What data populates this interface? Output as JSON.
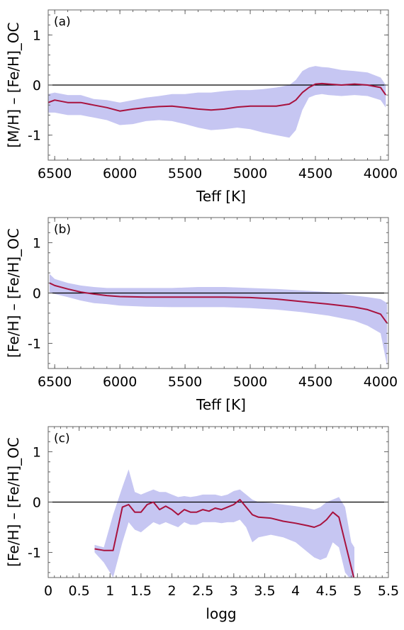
{
  "colors": {
    "band": "#c6c6f2",
    "median": "#a8123e",
    "frame": "#666666",
    "zero_line": "#000000"
  },
  "chart_data": [
    {
      "type": "area",
      "panel_label": "(a)",
      "xlabel": "Teff [K]",
      "ylabel": "[M/H] – [Fe/H]_OC",
      "xlim": [
        6550,
        3940
      ],
      "ylim": [
        -1.5,
        1.5
      ],
      "xticks": [
        6500,
        6000,
        5500,
        5000,
        4500,
        4000
      ],
      "yticks": [
        1,
        0,
        -1
      ],
      "reference_line_y": 0,
      "series": [
        {
          "role": "median",
          "x": [
            6550,
            6500,
            6400,
            6300,
            6200,
            6100,
            6000,
            5900,
            5800,
            5700,
            5600,
            5500,
            5400,
            5300,
            5200,
            5100,
            5000,
            4900,
            4800,
            4700,
            4650,
            4600,
            4550,
            4500,
            4450,
            4400,
            4300,
            4200,
            4100,
            4000,
            3960
          ],
          "y": [
            -0.35,
            -0.3,
            -0.35,
            -0.35,
            -0.4,
            -0.45,
            -0.52,
            -0.48,
            -0.45,
            -0.43,
            -0.42,
            -0.45,
            -0.48,
            -0.5,
            -0.48,
            -0.44,
            -0.42,
            -0.42,
            -0.42,
            -0.38,
            -0.3,
            -0.15,
            -0.05,
            0.02,
            0.03,
            0.02,
            0.0,
            0.02,
            0.0,
            -0.05,
            -0.2
          ]
        },
        {
          "role": "band_upper",
          "x": [
            6550,
            6500,
            6400,
            6300,
            6200,
            6100,
            6000,
            5900,
            5800,
            5700,
            5600,
            5500,
            5400,
            5300,
            5200,
            5100,
            5000,
            4900,
            4800,
            4700,
            4650,
            4600,
            4550,
            4500,
            4450,
            4400,
            4300,
            4200,
            4100,
            4000,
            3960
          ],
          "y": [
            -0.18,
            -0.15,
            -0.2,
            -0.2,
            -0.28,
            -0.3,
            -0.35,
            -0.3,
            -0.25,
            -0.22,
            -0.18,
            -0.18,
            -0.15,
            -0.15,
            -0.12,
            -0.1,
            -0.1,
            -0.08,
            -0.05,
            0.0,
            0.1,
            0.28,
            0.35,
            0.38,
            0.36,
            0.35,
            0.3,
            0.28,
            0.25,
            0.15,
            0.0
          ]
        },
        {
          "role": "band_lower",
          "x": [
            6550,
            6500,
            6400,
            6300,
            6200,
            6100,
            6000,
            5900,
            5800,
            5700,
            5600,
            5500,
            5400,
            5300,
            5200,
            5100,
            5000,
            4900,
            4800,
            4700,
            4650,
            4600,
            4550,
            4500,
            4450,
            4400,
            4300,
            4200,
            4100,
            4000,
            3960
          ],
          "y": [
            -0.55,
            -0.55,
            -0.6,
            -0.6,
            -0.65,
            -0.7,
            -0.8,
            -0.78,
            -0.72,
            -0.7,
            -0.72,
            -0.78,
            -0.85,
            -0.9,
            -0.88,
            -0.85,
            -0.88,
            -0.95,
            -1.0,
            -1.05,
            -0.9,
            -0.5,
            -0.25,
            -0.2,
            -0.18,
            -0.2,
            -0.22,
            -0.2,
            -0.22,
            -0.3,
            -0.45
          ]
        }
      ]
    },
    {
      "type": "area",
      "panel_label": "(b)",
      "xlabel": "Teff [K]",
      "ylabel": "[Fe/H] – [Fe/H]_OC",
      "xlim": [
        6550,
        3940
      ],
      "ylim": [
        -1.5,
        1.5
      ],
      "xticks": [
        6500,
        6000,
        5500,
        5000,
        4500,
        4000
      ],
      "yticks": [
        1,
        0,
        -1
      ],
      "reference_line_y": 0,
      "series": [
        {
          "role": "median",
          "x": [
            6540,
            6500,
            6400,
            6300,
            6200,
            6100,
            6000,
            5800,
            5600,
            5400,
            5200,
            5000,
            4800,
            4600,
            4400,
            4200,
            4100,
            4000,
            3950
          ],
          "y": [
            0.2,
            0.15,
            0.08,
            0.02,
            -0.02,
            -0.05,
            -0.07,
            -0.08,
            -0.08,
            -0.08,
            -0.08,
            -0.09,
            -0.12,
            -0.17,
            -0.22,
            -0.28,
            -0.33,
            -0.42,
            -0.6
          ]
        },
        {
          "role": "band_upper",
          "x": [
            6540,
            6500,
            6400,
            6300,
            6200,
            6100,
            6000,
            5800,
            5600,
            5400,
            5200,
            5000,
            4800,
            4600,
            4400,
            4200,
            4100,
            4000,
            3950
          ],
          "y": [
            0.38,
            0.28,
            0.2,
            0.15,
            0.12,
            0.1,
            0.1,
            0.1,
            0.1,
            0.12,
            0.12,
            0.1,
            0.08,
            0.05,
            0.02,
            -0.05,
            -0.08,
            -0.12,
            -0.2
          ]
        },
        {
          "role": "band_lower",
          "x": [
            6540,
            6500,
            6400,
            6300,
            6200,
            6100,
            6000,
            5800,
            5600,
            5400,
            5200,
            5000,
            4800,
            4600,
            4400,
            4200,
            4100,
            4000,
            3950
          ],
          "y": [
            0.02,
            -0.02,
            -0.08,
            -0.15,
            -0.2,
            -0.22,
            -0.25,
            -0.27,
            -0.28,
            -0.28,
            -0.28,
            -0.3,
            -0.33,
            -0.38,
            -0.45,
            -0.55,
            -0.65,
            -0.8,
            -1.45
          ]
        }
      ]
    },
    {
      "type": "area",
      "panel_label": "(c)",
      "xlabel": "logg",
      "ylabel": "[Fe/H] – [Fe/H]_OC",
      "xlim": [
        0,
        5.5
      ],
      "ylim": [
        -1.5,
        1.5
      ],
      "xticks": [
        0,
        0.5,
        1.0,
        1.5,
        2.0,
        2.5,
        3.0,
        3.5,
        4.0,
        4.5,
        5.0,
        5.5
      ],
      "yticks": [
        1,
        0,
        -1
      ],
      "reference_line_y": 0,
      "series": [
        {
          "role": "median",
          "x": [
            0.75,
            0.9,
            1.05,
            1.2,
            1.3,
            1.4,
            1.5,
            1.6,
            1.7,
            1.8,
            1.9,
            2.0,
            2.1,
            2.2,
            2.3,
            2.4,
            2.5,
            2.6,
            2.7,
            2.8,
            2.9,
            3.0,
            3.1,
            3.2,
            3.3,
            3.4,
            3.6,
            3.8,
            4.0,
            4.2,
            4.3,
            4.4,
            4.5,
            4.6,
            4.7,
            4.8,
            4.9,
            4.95
          ],
          "y": [
            -0.93,
            -0.96,
            -0.96,
            -0.1,
            -0.05,
            -0.2,
            -0.2,
            -0.05,
            0.0,
            -0.15,
            -0.08,
            -0.15,
            -0.25,
            -0.15,
            -0.2,
            -0.2,
            -0.15,
            -0.18,
            -0.12,
            -0.15,
            -0.1,
            -0.05,
            0.05,
            -0.1,
            -0.25,
            -0.3,
            -0.32,
            -0.38,
            -0.42,
            -0.47,
            -0.5,
            -0.45,
            -0.35,
            -0.2,
            -0.3,
            -0.8,
            -1.3,
            -1.55
          ]
        },
        {
          "role": "band_upper",
          "x": [
            0.75,
            0.9,
            1.05,
            1.2,
            1.3,
            1.4,
            1.5,
            1.6,
            1.7,
            1.8,
            1.9,
            2.0,
            2.1,
            2.2,
            2.3,
            2.4,
            2.5,
            2.6,
            2.7,
            2.8,
            2.9,
            3.0,
            3.1,
            3.2,
            3.3,
            3.4,
            3.6,
            3.8,
            4.0,
            4.2,
            4.3,
            4.4,
            4.5,
            4.6,
            4.7,
            4.8,
            4.9,
            4.95
          ],
          "y": [
            -0.85,
            -0.9,
            -0.25,
            0.3,
            0.65,
            0.2,
            0.15,
            0.2,
            0.25,
            0.2,
            0.2,
            0.15,
            0.1,
            0.12,
            0.1,
            0.12,
            0.15,
            0.15,
            0.15,
            0.12,
            0.15,
            0.22,
            0.25,
            0.15,
            0.05,
            0.0,
            -0.02,
            -0.05,
            -0.08,
            -0.12,
            -0.15,
            -0.1,
            0.0,
            0.05,
            0.1,
            -0.1,
            -0.8,
            -0.9
          ]
        },
        {
          "role": "band_lower",
          "x": [
            0.75,
            0.9,
            1.05,
            1.2,
            1.3,
            1.4,
            1.5,
            1.6,
            1.7,
            1.8,
            1.9,
            2.0,
            2.1,
            2.2,
            2.3,
            2.4,
            2.5,
            2.6,
            2.7,
            2.8,
            2.9,
            3.0,
            3.1,
            3.2,
            3.3,
            3.4,
            3.6,
            3.8,
            4.0,
            4.2,
            4.3,
            4.4,
            4.5,
            4.6,
            4.7,
            4.8,
            4.9,
            4.95
          ],
          "y": [
            -1.0,
            -1.2,
            -1.5,
            -0.8,
            -0.4,
            -0.55,
            -0.6,
            -0.5,
            -0.4,
            -0.45,
            -0.4,
            -0.45,
            -0.5,
            -0.4,
            -0.45,
            -0.45,
            -0.4,
            -0.4,
            -0.4,
            -0.42,
            -0.4,
            -0.4,
            -0.35,
            -0.5,
            -0.8,
            -0.7,
            -0.65,
            -0.7,
            -0.8,
            -1.0,
            -1.1,
            -1.15,
            -1.1,
            -0.8,
            -0.9,
            -1.4,
            -1.55,
            -1.55
          ]
        }
      ]
    }
  ]
}
